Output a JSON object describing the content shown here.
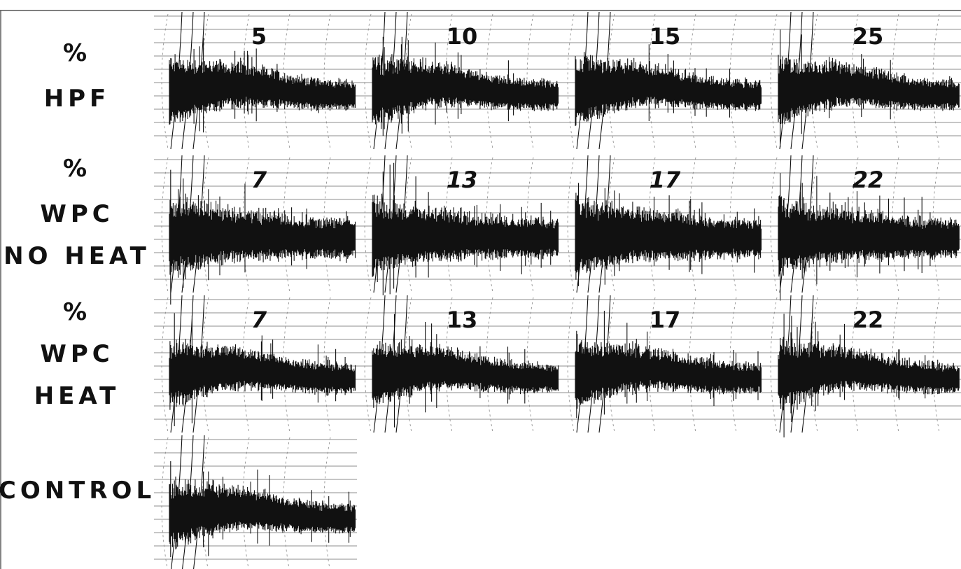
{
  "rows": [
    {
      "label": [
        "%",
        "HPF"
      ],
      "panels": [
        "5",
        "10",
        "15",
        "25"
      ]
    },
    {
      "label": [
        "%",
        "WPC",
        "NO HEAT"
      ],
      "panels": [
        "7",
        "13",
        "17",
        "22"
      ]
    },
    {
      "label": [
        "%",
        "WPC",
        "HEAT"
      ],
      "panels": [
        "7",
        "13",
        "17",
        "22"
      ]
    },
    {
      "label": [
        "CONTROL"
      ],
      "panels": []
    }
  ]
}
